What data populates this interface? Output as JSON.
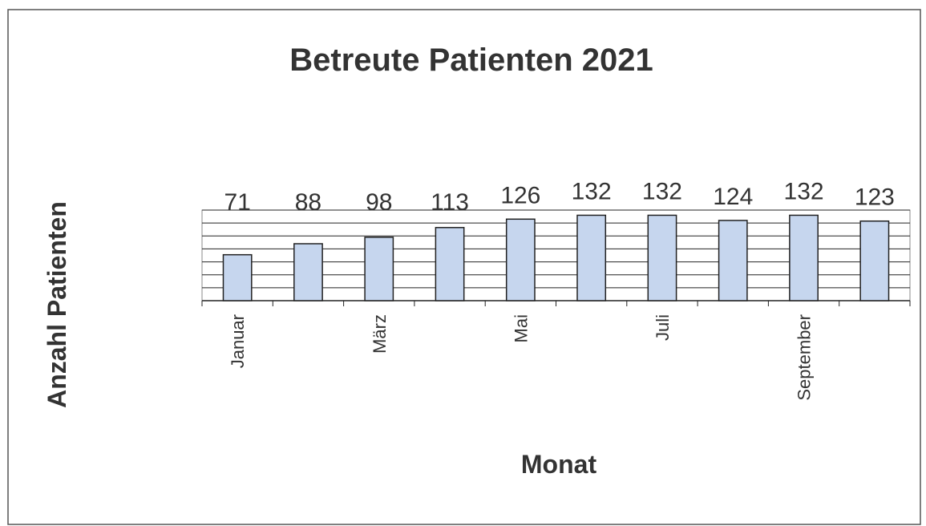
{
  "chart_data": {
    "type": "bar",
    "title": "Betreute Patienten 2021",
    "x_label": "Monat",
    "y_label": "Anzahl Patienten",
    "categories": [
      "Januar",
      null,
      "März",
      null,
      "Mai",
      null,
      "Juli",
      null,
      "September",
      null
    ],
    "values": [
      71,
      88,
      98,
      113,
      126,
      132,
      132,
      124,
      132,
      123
    ],
    "color": "#c6d6ee",
    "ylim": [
      0,
      140
    ],
    "yticks": [
      0,
      20,
      40,
      60,
      80,
      100,
      120,
      140
    ],
    "grid": true
  }
}
